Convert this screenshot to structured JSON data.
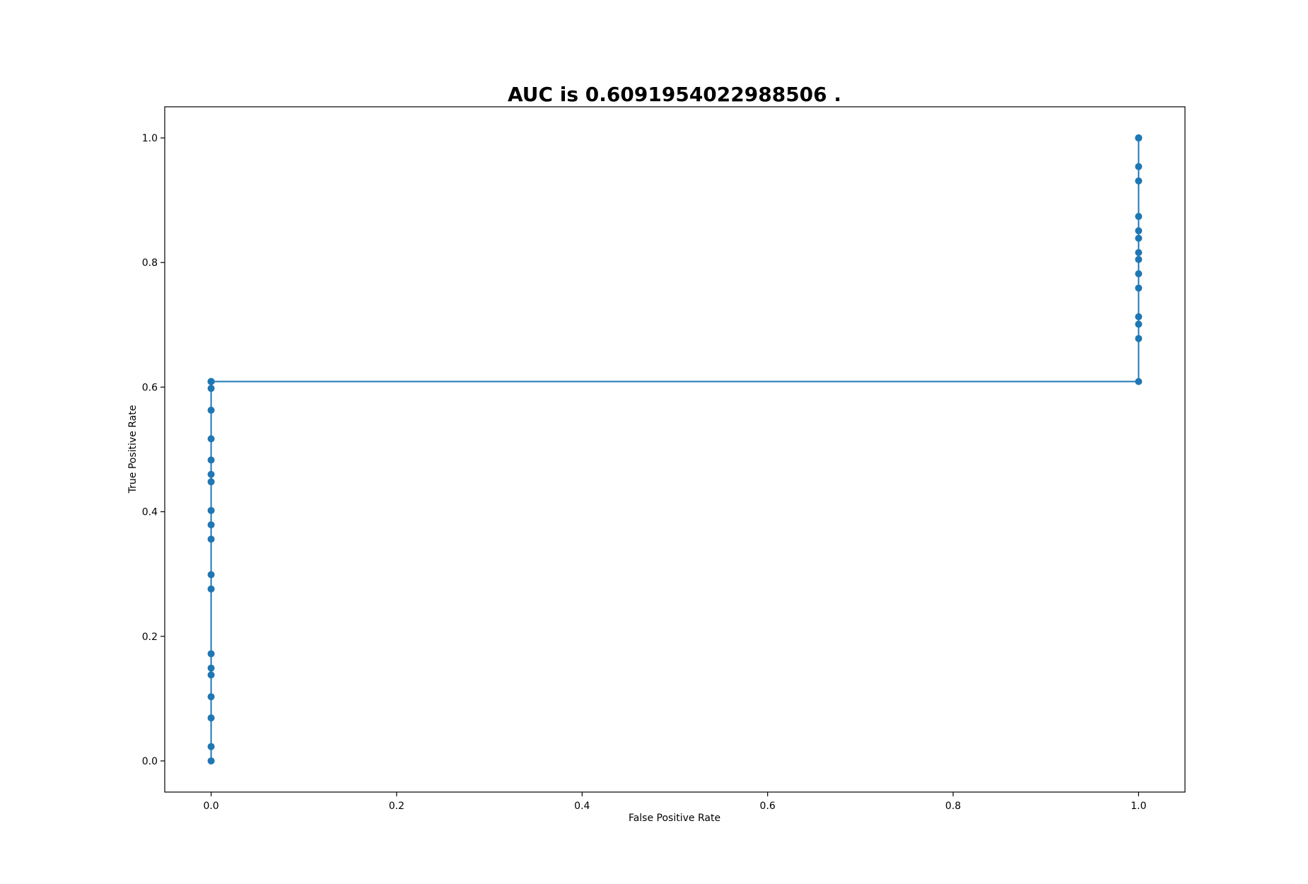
{
  "chart_data": {
    "type": "line",
    "title": "AUC is 0.6091954022988506 .",
    "xlabel": "False Positive Rate",
    "ylabel": "True Positive Rate",
    "xlim": [
      -0.05,
      1.05
    ],
    "ylim": [
      -0.05,
      1.05
    ],
    "xticks": [
      "0.0",
      "0.2",
      "0.4",
      "0.6",
      "0.8",
      "1.0"
    ],
    "yticks": [
      "0.0",
      "0.2",
      "0.4",
      "0.6",
      "0.8",
      "1.0"
    ],
    "grid": false,
    "markers": true,
    "series": [
      {
        "color": "#1f77b4",
        "x": [
          0,
          0,
          0,
          0,
          0,
          0,
          0,
          0,
          0,
          0,
          0,
          0,
          0,
          0,
          0,
          0,
          0,
          0,
          0,
          0,
          0,
          0,
          1,
          1,
          1,
          1,
          1,
          1,
          1,
          1,
          1,
          1,
          1,
          1,
          1,
          1,
          1,
          1
        ],
        "y": [
          0.0,
          0.023,
          0.069,
          0.103,
          0.138,
          0.149,
          0.172,
          0.276,
          0.299,
          0.356,
          0.379,
          0.402,
          0.448,
          0.46,
          0.483,
          0.517,
          0.563,
          0.598,
          0.609,
          0.609,
          0.609,
          0.609,
          0.609,
          0.678,
          0.701,
          0.713,
          0.759,
          0.782,
          0.805,
          0.816,
          0.839,
          0.851,
          0.874,
          0.931,
          0.954,
          1.0,
          1.0,
          1.0
        ]
      }
    ]
  }
}
